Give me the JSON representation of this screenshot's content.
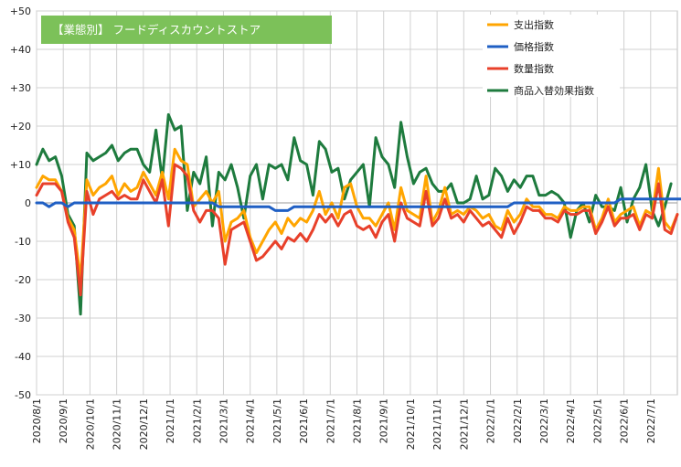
{
  "chart_data": {
    "type": "line",
    "title": "【業態別】 フードディスカウントストア",
    "xlabel": "",
    "ylabel": "",
    "ylim": [
      -50,
      50
    ],
    "y_ticks": [
      "+50",
      "+40",
      "+30",
      "+20",
      "+10",
      "0",
      "-10",
      "-20",
      "-30",
      "-40",
      "-50"
    ],
    "x_ticks": [
      "2020/8/1",
      "2020/9/1",
      "2020/10/1",
      "2020/11/1",
      "2020/12/1",
      "2021/1/1",
      "2021/2/1",
      "2021/3/1",
      "2021/4/1",
      "2021/5/1",
      "2021/6/1",
      "2021/7/1",
      "2021/8/1",
      "2021/9/1",
      "2021/10/1",
      "2021/11/1",
      "2021/12/1",
      "2022/1/1",
      "2022/2/1",
      "2022/3/1",
      "2022/4/1",
      "2022/5/1",
      "2022/6/1",
      "2022/7/1"
    ],
    "grid": true,
    "legend_position": "top-right",
    "series": [
      {
        "name": "支出指数",
        "color": "#FFA500",
        "values": [
          4,
          7,
          6,
          6,
          3,
          -4,
          -7,
          -20,
          6,
          2,
          4,
          5,
          7,
          2,
          5,
          3,
          4,
          8,
          5,
          2,
          8,
          1,
          14,
          11,
          10,
          -1,
          1,
          3,
          0,
          3,
          -10,
          -5,
          -4,
          -2,
          -9,
          -13,
          -10,
          -7,
          -5,
          -8,
          -4,
          -6,
          -4,
          -5,
          -2,
          3,
          -3,
          0,
          -4,
          4,
          5,
          -1,
          -4,
          -4,
          -6,
          -3,
          0,
          -7,
          4,
          -2,
          -3,
          -4,
          7,
          -5,
          -2,
          4,
          -3,
          -2,
          -3,
          -1,
          -2,
          -4,
          -3,
          -6,
          -7,
          -2,
          -5,
          -3,
          1,
          -1,
          -1,
          -3,
          -3,
          -4,
          -1,
          -2,
          -2,
          -1,
          -1,
          -7,
          -4,
          1,
          -5,
          -3,
          -2,
          -1,
          -6,
          -2,
          -3,
          9,
          -5,
          -7,
          -3
        ]
      },
      {
        "name": "価格指数",
        "color": "#1F5FC4",
        "values": [
          0,
          0,
          -1,
          0,
          0,
          -1,
          0,
          0,
          0,
          0,
          0,
          0,
          0,
          0,
          0,
          0,
          0,
          0,
          0,
          0,
          0,
          0,
          0,
          0,
          0,
          0,
          0,
          0,
          0,
          -1,
          -1,
          -1,
          -1,
          -1,
          -1,
          -1,
          -1,
          -1,
          -2,
          -2,
          -2,
          -1,
          -1,
          -1,
          -1,
          -1,
          -1,
          -1,
          -1,
          -1,
          -1,
          -1,
          -1,
          -1,
          -1,
          -1,
          -1,
          -1,
          -1,
          -1,
          -1,
          -1,
          -1,
          -1,
          -1,
          -1,
          -1,
          -1,
          -1,
          -1,
          -1,
          -1,
          -1,
          -1,
          -1,
          -1,
          0,
          0,
          0,
          0,
          0,
          0,
          0,
          0,
          0,
          0,
          0,
          0,
          0,
          0,
          0,
          0,
          0,
          1,
          1,
          1,
          1,
          1,
          1,
          1,
          1,
          1,
          1,
          1
        ]
      },
      {
        "name": "数量指数",
        "color": "#E8402A",
        "values": [
          2,
          5,
          5,
          5,
          3,
          -5,
          -9,
          -24,
          3,
          -3,
          1,
          2,
          3,
          1,
          2,
          1,
          1,
          6,
          3,
          0,
          6,
          -6,
          10,
          9,
          7,
          -2,
          -5,
          -2,
          -2,
          -4,
          -16,
          -7,
          -6,
          -5,
          -10,
          -15,
          -14,
          -12,
          -10,
          -12,
          -9,
          -10,
          -8,
          -10,
          -7,
          -3,
          -5,
          -3,
          -6,
          -3,
          -2,
          -6,
          -7,
          -6,
          -9,
          -5,
          -3,
          -10,
          0,
          -4,
          -5,
          -6,
          3,
          -6,
          -4,
          1,
          -4,
          -3,
          -5,
          -2,
          -4,
          -6,
          -5,
          -7,
          -9,
          -4,
          -8,
          -5,
          -1,
          -2,
          -2,
          -4,
          -4,
          -5,
          -2,
          -3,
          -3,
          -2,
          -2,
          -8,
          -5,
          -1,
          -6,
          -4,
          -4,
          -3,
          -7,
          -3,
          -4,
          5,
          -7,
          -8,
          -3
        ]
      },
      {
        "name": "商品入替効果指数",
        "color": "#1E7B3E",
        "values": [
          10,
          14,
          11,
          12,
          7,
          -3,
          -6,
          -29,
          13,
          11,
          12,
          13,
          15,
          11,
          13,
          14,
          14,
          10,
          8,
          19,
          6,
          23,
          19,
          20,
          -2,
          8,
          5,
          12,
          -6,
          8,
          6,
          10,
          4,
          -4,
          7,
          10,
          1,
          10,
          9,
          10,
          6,
          17,
          11,
          10,
          2,
          16,
          14,
          8,
          9,
          1,
          6,
          8,
          10,
          -1,
          17,
          12,
          10,
          4,
          21,
          12,
          5,
          8,
          9,
          5,
          3,
          3,
          5,
          0,
          0,
          1,
          7,
          1,
          2,
          9,
          7,
          3,
          6,
          4,
          7,
          7,
          2,
          2,
          3,
          2,
          0,
          -9,
          -2,
          0,
          -5,
          2,
          -1,
          -1,
          -2,
          4,
          -5,
          1,
          4,
          10,
          -2,
          -6,
          -1,
          5
        ]
      }
    ]
  }
}
